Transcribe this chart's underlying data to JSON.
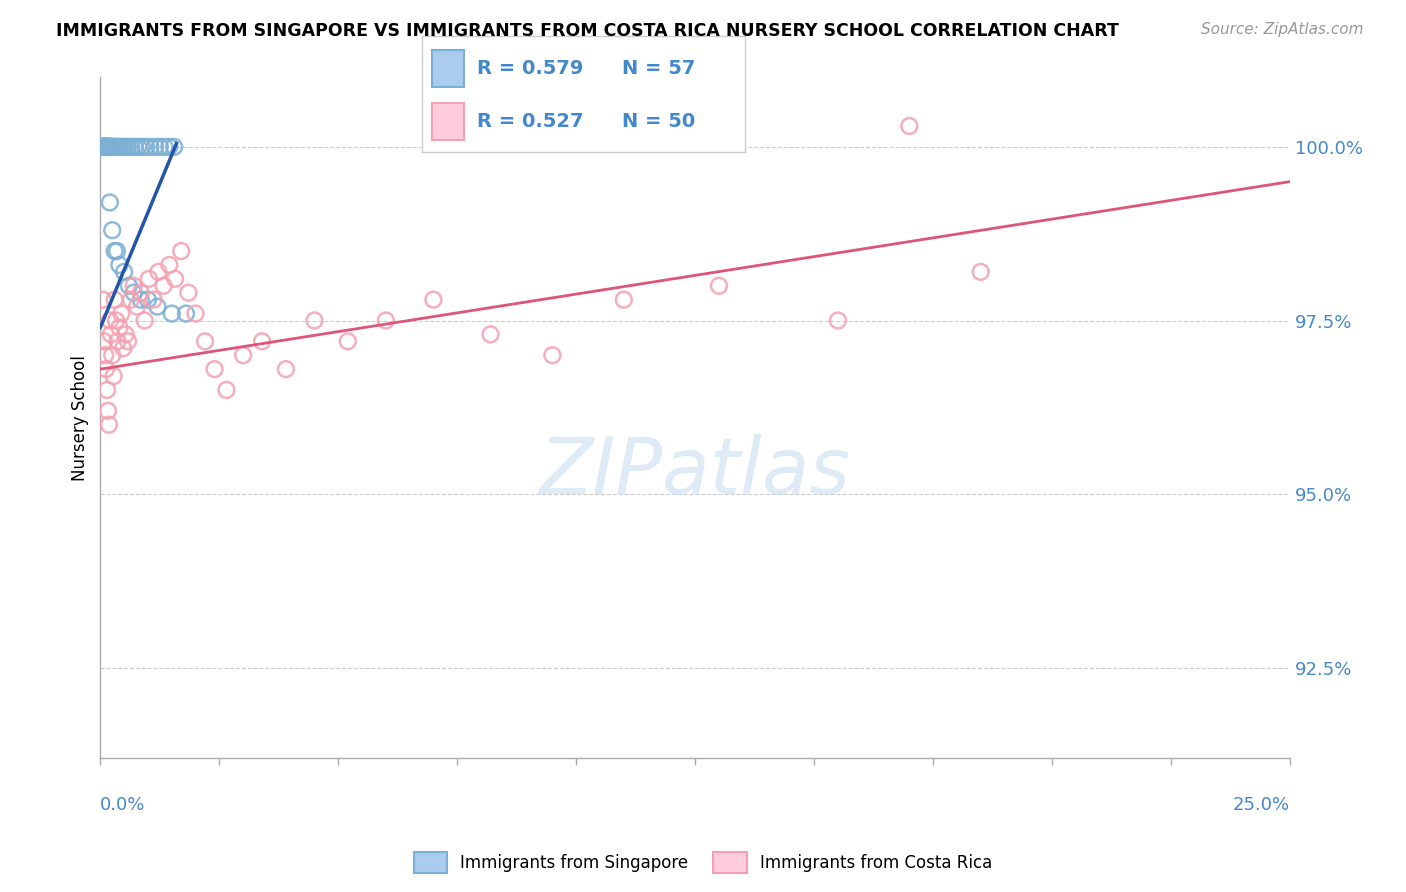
{
  "title": "IMMIGRANTS FROM SINGAPORE VS IMMIGRANTS FROM COSTA RICA NURSERY SCHOOL CORRELATION CHART",
  "source": "Source: ZipAtlas.com",
  "ylabel": "Nursery School",
  "yticks": [
    92.5,
    95.0,
    97.5,
    100.0
  ],
  "ytick_labels": [
    "92.5%",
    "95.0%",
    "97.5%",
    "100.0%"
  ],
  "xmin": 0.0,
  "xmax": 25.0,
  "ymin": 91.2,
  "ymax": 101.0,
  "legend_label_blue": "Immigrants from Singapore",
  "legend_label_pink": "Immigrants from Costa Rica",
  "blue_color": "#7BAFD4",
  "pink_color": "#F4A0B0",
  "trend_blue_color": "#2255AA",
  "trend_pink_color": "#DD5577",
  "tick_color": "#4488CC",
  "watermark_color": "#C8DCF0",
  "sg_x": [
    0.05,
    0.05,
    0.05,
    0.05,
    0.07,
    0.07,
    0.07,
    0.09,
    0.09,
    0.09,
    0.09,
    0.11,
    0.11,
    0.11,
    0.13,
    0.13,
    0.15,
    0.15,
    0.17,
    0.17,
    0.19,
    0.19,
    0.22,
    0.22,
    0.25,
    0.28,
    0.3,
    0.33,
    0.38,
    0.42,
    0.47,
    0.52,
    0.58,
    0.65,
    0.72,
    0.8,
    0.88,
    0.96,
    1.05,
    1.15,
    1.25,
    1.35,
    1.45,
    1.55,
    0.2,
    0.25,
    0.3,
    0.35,
    0.4,
    0.5,
    0.6,
    0.7,
    0.85,
    1.0,
    1.2,
    1.5,
    1.8
  ],
  "sg_y": [
    100.0,
    100.0,
    100.0,
    100.0,
    100.0,
    100.0,
    100.0,
    100.0,
    100.0,
    100.0,
    100.0,
    100.0,
    100.0,
    100.0,
    100.0,
    100.0,
    100.0,
    100.0,
    100.0,
    100.0,
    100.0,
    100.0,
    100.0,
    100.0,
    100.0,
    100.0,
    100.0,
    100.0,
    100.0,
    100.0,
    100.0,
    100.0,
    100.0,
    100.0,
    100.0,
    100.0,
    100.0,
    100.0,
    100.0,
    100.0,
    100.0,
    100.0,
    100.0,
    100.0,
    99.2,
    98.8,
    98.5,
    98.5,
    98.3,
    98.2,
    98.0,
    97.9,
    97.8,
    97.8,
    97.7,
    97.6,
    97.6
  ],
  "cr_x": [
    0.05,
    0.08,
    0.1,
    0.12,
    0.14,
    0.16,
    0.18,
    0.2,
    0.22,
    0.25,
    0.28,
    0.3,
    0.33,
    0.36,
    0.4,
    0.44,
    0.48,
    0.53,
    0.58,
    0.64,
    0.7,
    0.77,
    0.85,
    0.93,
    1.02,
    1.12,
    1.22,
    1.33,
    1.45,
    1.57,
    1.7,
    1.85,
    2.0,
    2.2,
    2.4,
    2.65,
    3.0,
    3.4,
    3.9,
    4.5,
    5.2,
    6.0,
    7.0,
    8.2,
    9.5,
    11.0,
    13.0,
    15.5,
    17.0,
    18.5
  ],
  "cr_y": [
    97.8,
    97.2,
    97.0,
    96.8,
    96.5,
    96.2,
    96.0,
    97.5,
    97.3,
    97.0,
    96.7,
    97.8,
    97.5,
    97.2,
    97.4,
    97.6,
    97.1,
    97.3,
    97.2,
    97.8,
    98.0,
    97.7,
    97.9,
    97.5,
    98.1,
    97.8,
    98.2,
    98.0,
    98.3,
    98.1,
    98.5,
    97.9,
    97.6,
    97.2,
    96.8,
    96.5,
    97.0,
    97.2,
    96.8,
    97.5,
    97.2,
    97.5,
    97.8,
    97.3,
    97.0,
    97.8,
    98.0,
    97.5,
    100.3,
    98.2
  ],
  "sg_trend_x": [
    0.0,
    1.6
  ],
  "sg_trend_y": [
    97.4,
    100.05
  ],
  "cr_trend_x": [
    0.0,
    25.0
  ],
  "cr_trend_y": [
    96.8,
    99.5
  ]
}
